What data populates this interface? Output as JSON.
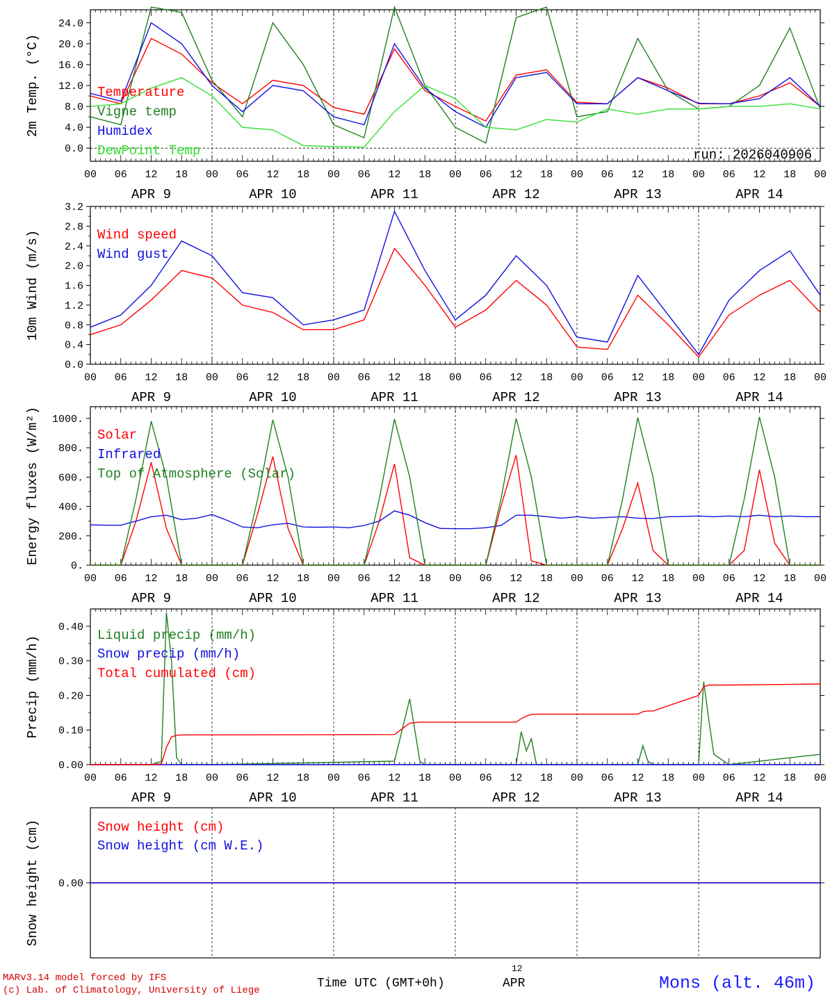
{
  "footer": {
    "model_line": "MARv3.14 model forced by IFS",
    "credit_line": "(c) Lab. of Climatology, University of Liege",
    "axis_title": "Time UTC (GMT+0h)",
    "axis_sub_hour": "12",
    "axis_sub_day": "APR",
    "station": "Mons (alt. 46m)",
    "colors": {
      "credit": "#d40000",
      "station": "#1a1aff"
    }
  },
  "chart_data": [
    {
      "type": "line",
      "ylabel": "2m Temp. (°C)",
      "ylim": [
        -2.5,
        26.5
      ],
      "yticks": [
        "0.0",
        "4.0",
        "8.0",
        "12.0",
        "16.0",
        "20.0",
        "24.0"
      ],
      "ytick_values": [
        0,
        4,
        8,
        12,
        16,
        20,
        24
      ],
      "zero_line": true,
      "annotation": "run: 2026040906",
      "x_hours": [
        0,
        6,
        12,
        18,
        24,
        30,
        36,
        42,
        48,
        54,
        60,
        66,
        72,
        78,
        84,
        90,
        96,
        102,
        108,
        114,
        120,
        126,
        132,
        138,
        144
      ],
      "series": [
        {
          "name": "Temperature",
          "color": "#ff0000",
          "values": [
            10.0,
            8.5,
            21.0,
            18.0,
            12.5,
            8.5,
            13.0,
            12.0,
            7.8,
            6.5,
            19.0,
            11.0,
            8.0,
            5.2,
            14.0,
            15.0,
            8.8,
            8.5,
            13.5,
            11.5,
            8.5,
            8.5,
            10.0,
            12.5,
            8.0
          ]
        },
        {
          "name": "Vigne temp",
          "color": "#208020",
          "values": [
            6.0,
            4.5,
            27.0,
            26.0,
            13.0,
            6.0,
            24.0,
            16.0,
            4.5,
            2.0,
            27.0,
            12.0,
            4.0,
            1.0,
            25.0,
            27.0,
            6.0,
            7.0,
            21.0,
            11.0,
            7.5,
            8.0,
            12.0,
            23.0,
            7.5
          ]
        },
        {
          "name": "Humidex",
          "color": "#1010e0",
          "values": [
            10.5,
            9.0,
            24.0,
            20.0,
            12.0,
            7.0,
            12.0,
            11.0,
            6.0,
            4.5,
            20.0,
            11.5,
            7.0,
            4.0,
            13.5,
            14.5,
            8.5,
            8.5,
            13.5,
            11.0,
            8.6,
            8.5,
            9.5,
            13.5,
            8.0
          ]
        },
        {
          "name": "DewPoint Temp",
          "color": "#30e030",
          "values": [
            8.0,
            8.5,
            11.5,
            13.5,
            10.0,
            4.0,
            3.5,
            0.5,
            0.3,
            0.2,
            7.0,
            12.0,
            9.5,
            4.0,
            3.5,
            5.5,
            5.0,
            7.5,
            6.5,
            7.5,
            7.5,
            8.0,
            8.0,
            8.5,
            7.5
          ]
        }
      ]
    },
    {
      "type": "line",
      "ylabel": "10m Wind (m/s)",
      "ylim": [
        0,
        3.2
      ],
      "yticks": [
        "0.0",
        "0.4",
        "0.8",
        "1.2",
        "1.6",
        "2.0",
        "2.4",
        "2.8",
        "3.2"
      ],
      "ytick_values": [
        0,
        0.4,
        0.8,
        1.2,
        1.6,
        2.0,
        2.4,
        2.8,
        3.2
      ],
      "x_hours": [
        0,
        6,
        12,
        18,
        24,
        30,
        36,
        42,
        48,
        54,
        60,
        66,
        72,
        78,
        84,
        90,
        96,
        102,
        108,
        114,
        120,
        126,
        132,
        138,
        144
      ],
      "series": [
        {
          "name": "Wind speed",
          "color": "#ff0000",
          "values": [
            0.6,
            0.8,
            1.3,
            1.9,
            1.75,
            1.2,
            1.05,
            0.7,
            0.7,
            0.9,
            2.35,
            1.6,
            0.75,
            1.1,
            1.7,
            1.2,
            0.35,
            0.3,
            1.4,
            0.8,
            0.15,
            1.0,
            1.4,
            1.7,
            1.05
          ]
        },
        {
          "name": "Wind gust",
          "color": "#1010e0",
          "values": [
            0.75,
            1.0,
            1.6,
            2.5,
            2.2,
            1.45,
            1.35,
            0.8,
            0.9,
            1.1,
            3.1,
            1.9,
            0.9,
            1.4,
            2.2,
            1.6,
            0.55,
            0.45,
            1.8,
            1.0,
            0.2,
            1.3,
            1.9,
            2.3,
            1.4
          ]
        }
      ]
    },
    {
      "type": "line",
      "ylabel": "Energy fluxes (W/m²)",
      "ylim": [
        0,
        1080
      ],
      "yticks": [
        "0.",
        "200.",
        "400.",
        "600.",
        "800.",
        "1000."
      ],
      "ytick_values": [
        0,
        200,
        400,
        600,
        800,
        1000
      ],
      "x_hours": [
        0,
        3,
        6,
        9,
        12,
        15,
        18,
        21,
        24,
        27,
        30,
        33,
        36,
        39,
        42,
        45,
        48,
        51,
        54,
        57,
        60,
        63,
        66,
        69,
        72,
        75,
        78,
        81,
        84,
        87,
        90,
        93,
        96,
        99,
        102,
        105,
        108,
        111,
        114,
        117,
        120,
        123,
        126,
        129,
        132,
        135,
        138,
        141,
        144
      ],
      "series": [
        {
          "name": "Solar",
          "color": "#ff0000",
          "values": [
            0,
            0,
            0,
            300,
            700,
            250,
            0,
            0,
            0,
            0,
            0,
            350,
            740,
            250,
            0,
            0,
            0,
            0,
            0,
            300,
            690,
            50,
            0,
            0,
            0,
            0,
            0,
            400,
            750,
            30,
            0,
            0,
            0,
            0,
            0,
            250,
            560,
            100,
            0,
            0,
            0,
            0,
            0,
            100,
            650,
            150,
            0,
            0,
            0
          ]
        },
        {
          "name": "Infrared",
          "color": "#1010e0",
          "values": [
            275,
            272,
            272,
            300,
            330,
            340,
            310,
            320,
            345,
            305,
            260,
            255,
            275,
            285,
            260,
            258,
            260,
            255,
            270,
            300,
            370,
            340,
            290,
            250,
            248,
            248,
            255,
            270,
            340,
            340,
            330,
            320,
            330,
            320,
            325,
            330,
            320,
            318,
            330,
            332,
            335,
            330,
            335,
            330,
            340,
            330,
            335,
            330,
            330
          ]
        },
        {
          "name": "Top of Atmosphere (Solar)",
          "color": "#208020",
          "values": [
            0,
            0,
            0,
            450,
            980,
            600,
            0,
            0,
            0,
            0,
            0,
            450,
            990,
            600,
            0,
            0,
            0,
            0,
            0,
            450,
            995,
            600,
            0,
            0,
            0,
            0,
            0,
            450,
            1000,
            600,
            0,
            0,
            0,
            0,
            0,
            450,
            1005,
            600,
            0,
            0,
            0,
            0,
            0,
            450,
            1010,
            600,
            0,
            0,
            0
          ]
        }
      ]
    },
    {
      "type": "line",
      "ylabel": "Precip (mm/h)",
      "ylim": [
        0,
        0.45
      ],
      "yticks": [
        "0.00",
        "0.10",
        "0.20",
        "0.30",
        "0.40"
      ],
      "ytick_values": [
        0,
        0.1,
        0.2,
        0.3,
        0.4
      ],
      "x_hours": [
        0,
        12,
        14,
        15,
        16,
        17,
        18,
        24,
        60,
        63,
        65,
        66,
        84,
        85,
        86,
        87,
        88,
        90,
        108,
        109,
        110,
        111,
        120,
        121,
        122,
        123,
        126,
        144
      ],
      "series": [
        {
          "name": "Liquid precip (mm/h)",
          "color": "#208020",
          "values": [
            0,
            0,
            0.01,
            0.44,
            0.3,
            0.02,
            0,
            0,
            0.01,
            0.19,
            0.01,
            0,
            0,
            0.095,
            0.04,
            0.075,
            0,
            0,
            0,
            0.055,
            0.01,
            0,
            0,
            0.24,
            0.13,
            0.03,
            0,
            0.03
          ]
        },
        {
          "name": "Snow precip (mm/h)",
          "color": "#1010e0",
          "values": [
            0,
            0,
            0,
            0,
            0,
            0,
            0,
            0,
            0,
            0,
            0,
            0,
            0,
            0,
            0,
            0,
            0,
            0,
            0,
            0,
            0,
            0,
            0,
            0,
            0,
            0,
            0,
            0
          ]
        },
        {
          "name": "Total cumulated (cm)",
          "color": "#ff0000",
          "values": [
            0,
            0,
            0.002,
            0.05,
            0.08,
            0.085,
            0.086,
            0.086,
            0.087,
            0.12,
            0.123,
            0.123,
            0.123,
            0.133,
            0.14,
            0.145,
            0.146,
            0.146,
            0.146,
            0.153,
            0.155,
            0.155,
            0.2,
            0.225,
            0.23,
            0.23,
            0.23,
            0.233
          ]
        }
      ]
    },
    {
      "type": "line",
      "ylabel": "Snow height (cm)",
      "ylim": [
        -1,
        1
      ],
      "yticks": [
        "0.00"
      ],
      "ytick_values": [
        0
      ],
      "x_hours": [
        0,
        144
      ],
      "series": [
        {
          "name": "Snow height (cm)",
          "color": "#ff0000",
          "values": [
            0,
            0
          ]
        },
        {
          "name": "Snow height (cm W.E.)",
          "color": "#1010e0",
          "values": [
            0,
            0
          ]
        }
      ]
    }
  ],
  "time_axis": {
    "hour_labels": [
      "00",
      "06",
      "12",
      "18"
    ],
    "final_label": "00",
    "days": [
      "APR  9",
      "APR 10",
      "APR 11",
      "APR 12",
      "APR 13",
      "APR 14"
    ]
  }
}
